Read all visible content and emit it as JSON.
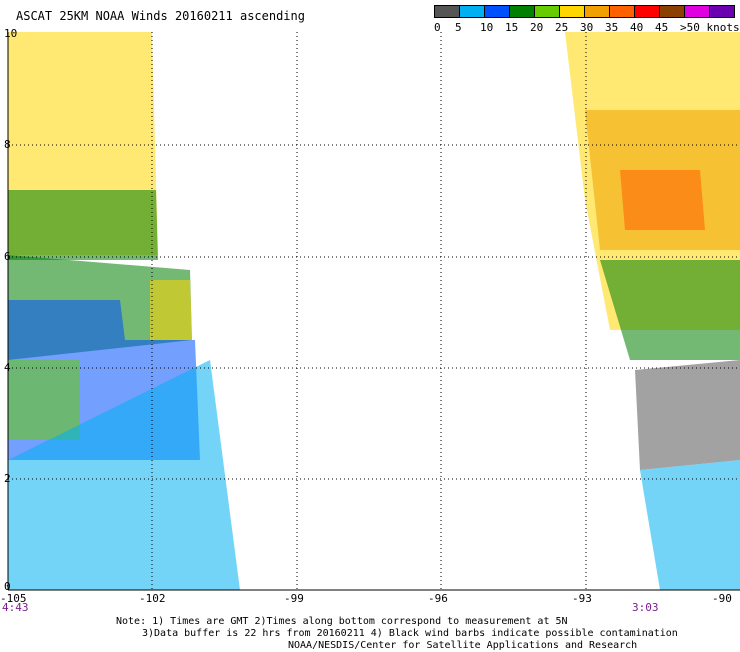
{
  "title": "ASCAT 25KM NOAA Winds 20160211 ascending",
  "legend": {
    "colors": [
      "#555555",
      "#00b0f0",
      "#0050ff",
      "#008000",
      "#66cc00",
      "#ffd700",
      "#f0a000",
      "#ff6000",
      "#ff0000",
      "#8b4000",
      "#e000e0",
      "#6a00b0"
    ],
    "labels": [
      "0",
      "5",
      "10",
      "15",
      "20",
      "25",
      "30",
      "35",
      "40",
      "45",
      ">50 knots"
    ]
  },
  "y_axis": {
    "labels": [
      "10",
      "8",
      "6",
      "4",
      "2",
      "0"
    ]
  },
  "x_axis": {
    "labels": [
      "-105",
      "-102",
      "-99",
      "-96",
      "-93",
      "-90"
    ]
  },
  "times": {
    "left": "4:43",
    "right": "3:03"
  },
  "note": {
    "line1": "Note: 1) Times are GMT 2)Times along bottom correspond to measurement at 5N",
    "line2": "3)Data buffer is 22 hrs from 20160211 4) Black wind barbs indicate possible contamination",
    "line3": "NOAA/NESDIS/Center for Satellite Applications and Research"
  }
}
